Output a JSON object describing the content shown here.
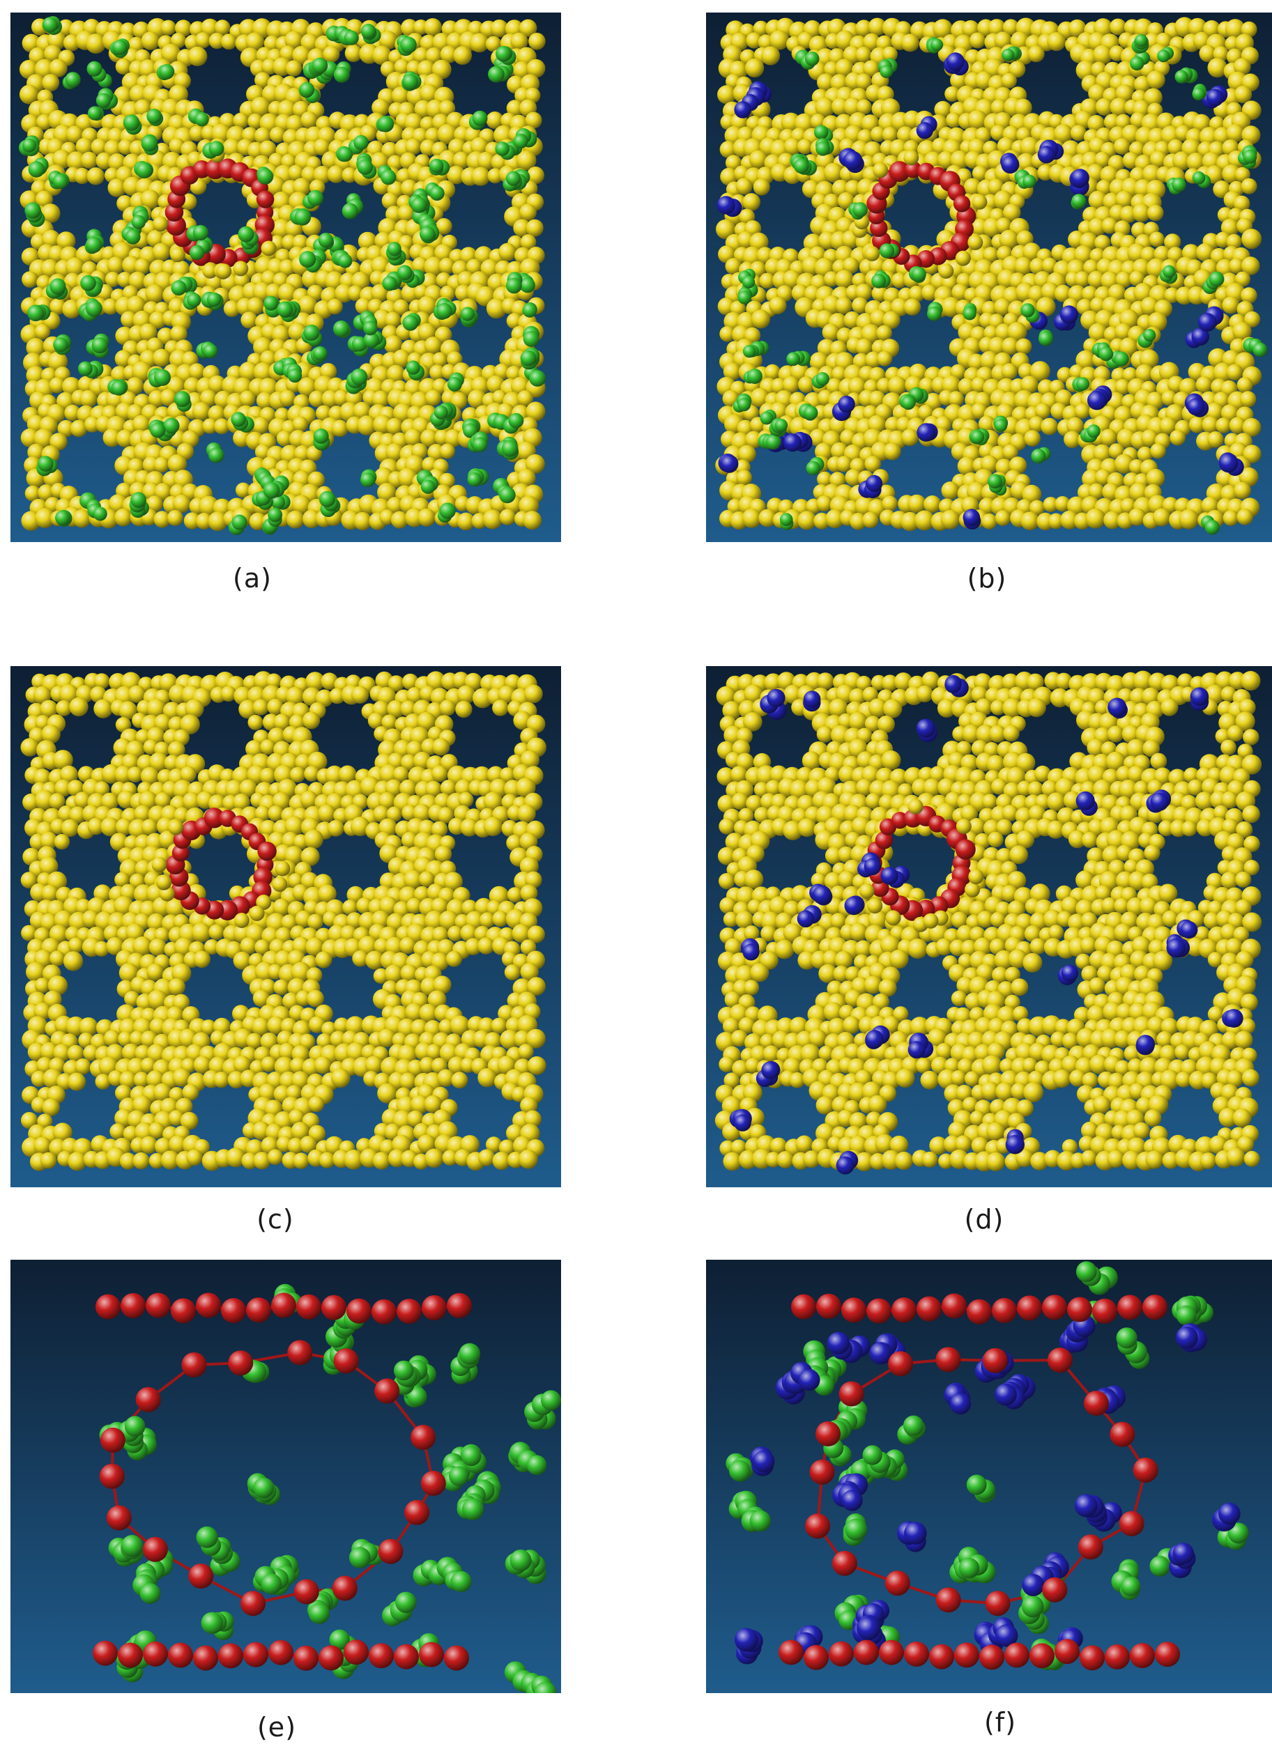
{
  "figure": {
    "panels": [
      {
        "id": "a",
        "label": "(a)",
        "framework": "yellow",
        "species": [
          "green",
          "red-ring"
        ]
      },
      {
        "id": "b",
        "label": "(b)",
        "framework": "yellow",
        "species": [
          "green",
          "blue",
          "red-ring"
        ]
      },
      {
        "id": "c",
        "label": "(c)",
        "framework": "yellow",
        "species": [
          "red-ring"
        ]
      },
      {
        "id": "d",
        "label": "(d)",
        "framework": "yellow",
        "species": [
          "blue",
          "red-ring"
        ]
      },
      {
        "id": "e",
        "label": "(e)",
        "framework": "none",
        "species": [
          "red-chain",
          "green"
        ]
      },
      {
        "id": "f",
        "label": "(f)",
        "framework": "none",
        "species": [
          "red-chain",
          "green",
          "blue"
        ]
      }
    ]
  },
  "colors": {
    "framework_atom": "#e8d21a",
    "guest_green": "#35c02f",
    "guest_blue": "#2323b8",
    "ring_red": "#c81d1d",
    "background_top": "#0e1f33",
    "background_bottom": "#1f5c8c"
  }
}
